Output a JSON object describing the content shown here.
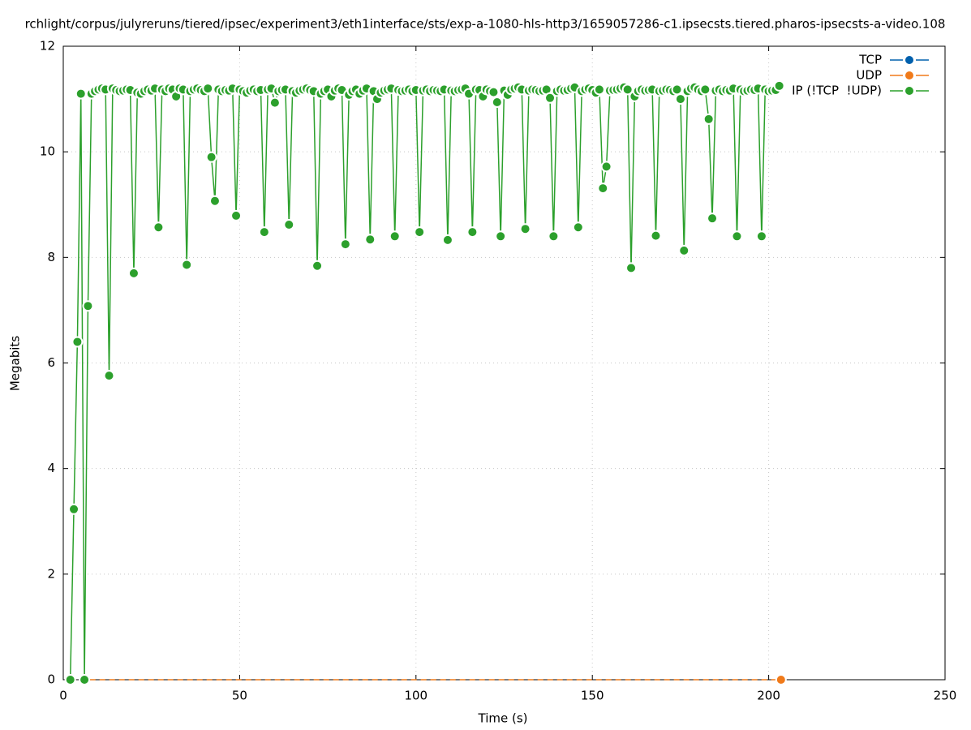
{
  "chart_data": {
    "type": "line",
    "title": "rchlight/corpus/julyreruns/tiered/ipsec/experiment3/eth1interface/sts/exp-a-1080-hls-http3/1659057286-c1.ipsecsts.tiered.pharos-ipsecsts-a-video.108",
    "x_label": "Time (s)",
    "y_label": "Megabits",
    "xlim": [
      0,
      250
    ],
    "xticks": [
      0,
      50,
      100,
      150,
      200,
      250
    ],
    "ylim": [
      0,
      12
    ],
    "yticks": [
      0,
      2,
      4,
      6,
      8,
      10,
      12
    ],
    "grid": true,
    "legend": "top-right",
    "series": [
      {
        "name": "TCP",
        "color": "#0060ad",
        "x": [],
        "values": []
      },
      {
        "name": "UDP",
        "color": "#f07a1a",
        "x": [
          2,
          12,
          22,
          32,
          42,
          52,
          62,
          72,
          82,
          92,
          102,
          112,
          122,
          132,
          142,
          152,
          162,
          172,
          182,
          192,
          202,
          203.5
        ],
        "values": [
          0,
          0,
          0,
          0,
          0,
          0,
          0,
          0,
          0,
          0,
          0,
          0,
          0,
          0,
          0,
          0,
          0,
          0,
          0,
          0,
          0,
          0
        ]
      },
      {
        "name": "IP (!TCP  !UDP)",
        "color": "#2ca02c",
        "x": [
          2,
          3,
          4,
          5,
          6,
          7,
          8,
          9,
          10,
          11,
          12,
          13,
          14,
          15,
          16,
          17,
          18,
          19,
          20,
          21,
          22,
          23,
          24,
          25,
          26,
          27,
          28,
          29,
          30,
          31,
          32,
          33,
          34,
          35,
          36,
          37,
          38,
          39,
          40,
          41,
          42,
          43,
          44,
          45,
          46,
          47,
          48,
          49,
          50,
          51,
          52,
          53,
          54,
          55,
          56,
          57,
          58,
          59,
          60,
          61,
          62,
          63,
          64,
          65,
          66,
          67,
          68,
          69,
          70,
          71,
          72,
          73,
          74,
          75,
          76,
          77,
          78,
          79,
          80,
          81,
          82,
          83,
          84,
          85,
          86,
          87,
          88,
          89,
          90,
          91,
          92,
          93,
          94,
          95,
          96,
          97,
          98,
          99,
          100,
          101,
          102,
          103,
          104,
          105,
          106,
          107,
          108,
          109,
          110,
          111,
          112,
          113,
          114,
          115,
          116,
          117,
          118,
          119,
          120,
          121,
          122,
          123,
          124,
          125,
          126,
          127,
          128,
          129,
          130,
          131,
          132,
          133,
          134,
          135,
          136,
          137,
          138,
          139,
          140,
          141,
          142,
          143,
          144,
          145,
          146,
          147,
          148,
          149,
          150,
          151,
          152,
          153,
          154,
          155,
          156,
          157,
          158,
          159,
          160,
          161,
          162,
          163,
          164,
          165,
          166,
          167,
          168,
          169,
          170,
          171,
          172,
          173,
          174,
          175,
          176,
          177,
          178,
          179,
          180,
          181,
          182,
          183,
          184,
          185,
          186,
          187,
          188,
          189,
          190,
          191,
          192,
          193,
          194,
          195,
          196,
          197,
          198,
          199,
          200,
          201,
          202,
          203
        ],
        "values": [
          0,
          3.23,
          6.4,
          11.1,
          0,
          7.08,
          11.1,
          11.15,
          11.18,
          11.2,
          11.18,
          5.76,
          11.2,
          11.17,
          11.15,
          11.16,
          11.18,
          11.17,
          7.7,
          11.12,
          11.1,
          11.15,
          11.18,
          11.16,
          11.2,
          8.57,
          11.18,
          11.15,
          11.2,
          11.18,
          11.05,
          11.2,
          11.18,
          7.86,
          11.15,
          11.18,
          11.2,
          11.17,
          11.15,
          11.2,
          9.9,
          9.07,
          11.18,
          11.15,
          11.17,
          11.16,
          11.2,
          8.79,
          11.18,
          11.15,
          11.12,
          11.16,
          11.18,
          11.15,
          11.17,
          8.48,
          11.18,
          11.2,
          10.93,
          11.15,
          11.17,
          11.18,
          8.62,
          11.15,
          11.12,
          11.16,
          11.18,
          11.2,
          11.17,
          11.15,
          7.84,
          11.1,
          11.15,
          11.18,
          11.05,
          11.16,
          11.2,
          11.17,
          8.25,
          11.08,
          11.15,
          11.18,
          11.1,
          11.16,
          11.2,
          8.34,
          11.15,
          11.0,
          11.12,
          11.16,
          11.18,
          11.2,
          8.4,
          11.17,
          11.15,
          11.16,
          11.18,
          11.15,
          11.17,
          8.48,
          11.16,
          11.18,
          11.15,
          11.17,
          11.16,
          11.15,
          11.18,
          8.33,
          11.16,
          11.15,
          11.17,
          11.18,
          11.2,
          11.1,
          8.48,
          11.18,
          11.17,
          11.05,
          11.18,
          11.15,
          11.13,
          10.94,
          8.4,
          11.16,
          11.08,
          11.18,
          11.2,
          11.22,
          11.18,
          8.54,
          11.16,
          11.18,
          11.17,
          11.15,
          11.16,
          11.18,
          11.02,
          8.4,
          11.15,
          11.18,
          11.16,
          11.17,
          11.2,
          11.22,
          8.57,
          11.15,
          11.18,
          11.2,
          11.17,
          11.12,
          11.18,
          9.31,
          9.72,
          11.16,
          11.17,
          11.18,
          11.2,
          11.22,
          11.18,
          7.8,
          11.05,
          11.15,
          11.18,
          11.16,
          11.17,
          11.18,
          8.41,
          11.15,
          11.16,
          11.18,
          11.17,
          11.15,
          11.18,
          11.0,
          8.13,
          11.15,
          11.2,
          11.22,
          11.18,
          11.15,
          11.18,
          10.62,
          8.74,
          11.16,
          11.18,
          11.15,
          11.17,
          11.16,
          11.2,
          8.4,
          11.18,
          11.15,
          11.16,
          11.18,
          11.17,
          11.2,
          8.4,
          11.18,
          11.15,
          11.16,
          11.17,
          11.25
        ]
      }
    ]
  }
}
